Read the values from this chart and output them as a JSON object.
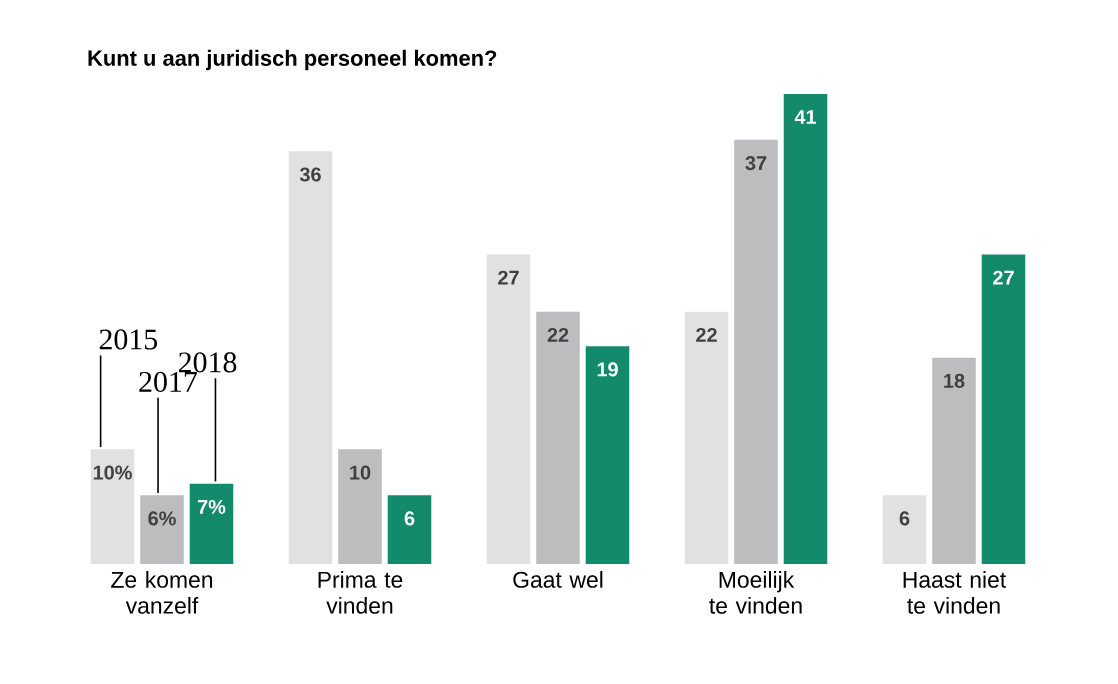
{
  "chart_data": {
    "type": "bar",
    "title": "Kunt u aan juridisch personeel komen?",
    "categories": [
      "Ze komen vanzelf",
      "Prima te vinden",
      "Gaat wel",
      "Moeilijk te vinden",
      "Haast niet te vinden"
    ],
    "series": [
      {
        "name": "2015",
        "color": "#e1e1e1",
        "values": [
          10,
          36,
          27,
          22,
          6
        ],
        "value_labels": [
          "10%",
          "36",
          "27",
          "22",
          "6"
        ]
      },
      {
        "name": "2017",
        "color": "#bdbdbf",
        "values": [
          6,
          10,
          22,
          37,
          18
        ],
        "value_labels": [
          "6%",
          "10",
          "22",
          "37",
          "18"
        ]
      },
      {
        "name": "2018",
        "color": "#138a6c",
        "values": [
          7,
          6,
          19,
          41,
          27
        ],
        "value_labels": [
          "7%",
          "6",
          "19",
          "41",
          "27"
        ]
      }
    ],
    "legend": false
  }
}
